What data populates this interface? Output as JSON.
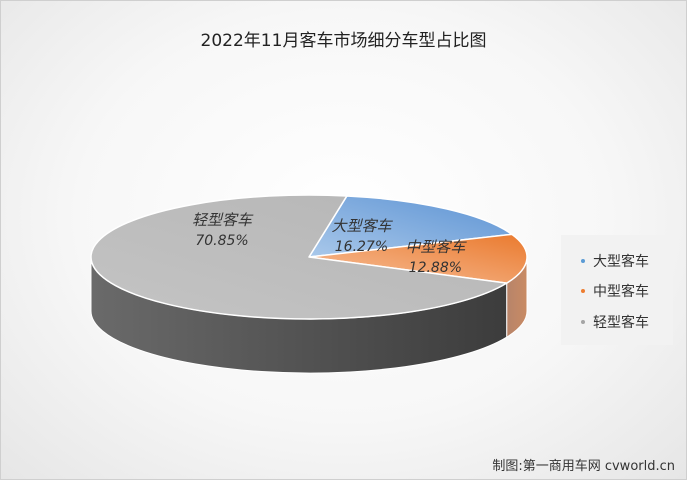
{
  "chart_data": {
    "type": "pie",
    "title": "2022年11月客车市场细分车型占比图",
    "slices": [
      {
        "label": "大型客车",
        "value": 16.27,
        "value_text": "16.27%",
        "color": "#5b9bd5"
      },
      {
        "label": "中型客车",
        "value": 12.88,
        "value_text": "12.88%",
        "color": "#ed7d31"
      },
      {
        "label": "轻型客车",
        "value": 70.85,
        "value_text": "70.85%",
        "color": "#a5a5a5"
      }
    ],
    "legend_position": "right",
    "style": "3d"
  },
  "credit": "制图:第一商用车网 cvworld.cn"
}
